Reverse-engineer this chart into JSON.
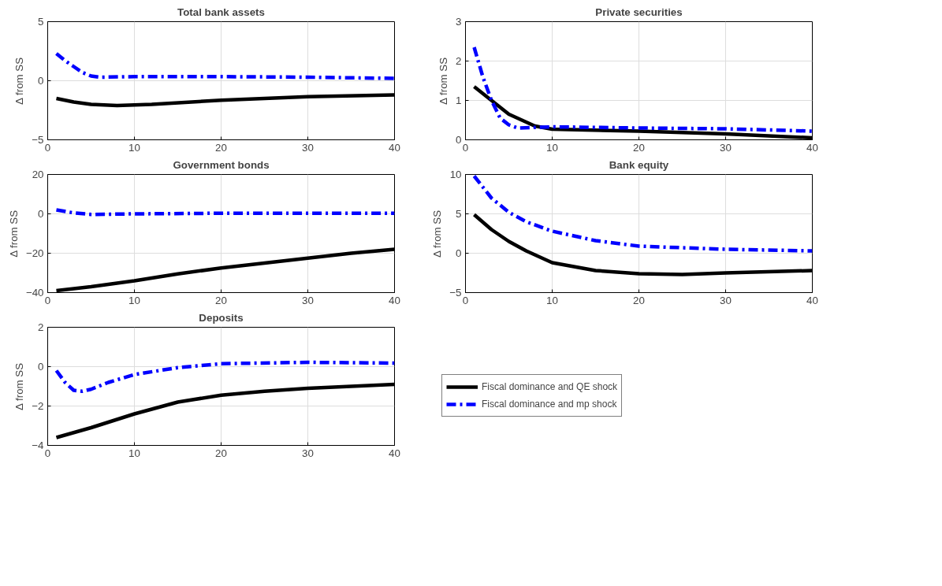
{
  "chart_data": [
    {
      "type": "line",
      "title": "Total bank assets",
      "ylabel": "Δ from SS",
      "xlim": [
        0,
        40
      ],
      "xticks": [
        0,
        10,
        20,
        30,
        40
      ],
      "ylim": [
        -5,
        5
      ],
      "yticks": [
        -5,
        0,
        5
      ],
      "grid": true,
      "series": [
        {
          "color": "#000000",
          "line_style": "solid",
          "x": [
            1,
            3,
            5,
            8,
            12,
            20,
            30,
            40
          ],
          "values": [
            -1.5,
            -1.8,
            -2.0,
            -2.1,
            -2.0,
            -1.65,
            -1.35,
            -1.2
          ]
        },
        {
          "color": "#0000ff",
          "line_style": "dashdot",
          "x": [
            1,
            2,
            3,
            4,
            5,
            6,
            10,
            20,
            30,
            40
          ],
          "values": [
            2.3,
            1.7,
            1.2,
            0.7,
            0.4,
            0.3,
            0.35,
            0.35,
            0.3,
            0.2
          ]
        }
      ]
    },
    {
      "type": "line",
      "title": "Private securities",
      "ylabel": "Δ from SS",
      "xlim": [
        0,
        40
      ],
      "xticks": [
        0,
        10,
        20,
        30,
        40
      ],
      "ylim": [
        0,
        3
      ],
      "yticks": [
        0,
        1,
        2,
        3
      ],
      "grid": true,
      "series": [
        {
          "color": "#000000",
          "line_style": "solid",
          "x": [
            1,
            3,
            5,
            8,
            10,
            20,
            30,
            40
          ],
          "values": [
            1.35,
            1.0,
            0.65,
            0.35,
            0.27,
            0.22,
            0.15,
            0.05
          ]
        },
        {
          "color": "#0000ff",
          "line_style": "dashdot",
          "x": [
            1,
            2,
            3,
            4,
            5,
            6,
            10,
            20,
            30,
            40
          ],
          "values": [
            2.35,
            1.6,
            1.0,
            0.55,
            0.38,
            0.3,
            0.33,
            0.3,
            0.28,
            0.22
          ]
        }
      ]
    },
    {
      "type": "line",
      "title": "Government bonds",
      "ylabel": "Δ from SS",
      "xlim": [
        0,
        40
      ],
      "xticks": [
        0,
        10,
        20,
        30,
        40
      ],
      "ylim": [
        -40,
        20
      ],
      "yticks": [
        -40,
        -20,
        0,
        20
      ],
      "grid": true,
      "series": [
        {
          "color": "#000000",
          "line_style": "solid",
          "x": [
            1,
            5,
            10,
            15,
            20,
            25,
            30,
            35,
            40
          ],
          "values": [
            -39,
            -37,
            -34,
            -30.5,
            -27.5,
            -25,
            -22.5,
            -20,
            -18
          ]
        },
        {
          "color": "#0000ff",
          "line_style": "dashdot",
          "x": [
            1,
            3,
            5,
            7,
            10,
            20,
            30,
            40
          ],
          "values": [
            2,
            0.5,
            -0.3,
            -0.2,
            0,
            0.3,
            0.3,
            0.3
          ]
        }
      ]
    },
    {
      "type": "line",
      "title": "Bank equity",
      "ylabel": "Δ from SS",
      "xlim": [
        0,
        40
      ],
      "xticks": [
        0,
        10,
        20,
        30,
        40
      ],
      "ylim": [
        -5,
        10
      ],
      "yticks": [
        -5,
        0,
        5,
        10
      ],
      "grid": true,
      "series": [
        {
          "color": "#000000",
          "line_style": "solid",
          "x": [
            1,
            3,
            5,
            7,
            10,
            15,
            20,
            25,
            30,
            40
          ],
          "values": [
            4.9,
            3.0,
            1.5,
            0.3,
            -1.2,
            -2.2,
            -2.6,
            -2.7,
            -2.5,
            -2.2
          ]
        },
        {
          "color": "#0000ff",
          "line_style": "dashdot",
          "x": [
            1,
            3,
            5,
            7,
            10,
            15,
            20,
            30,
            40
          ],
          "values": [
            9.8,
            7.0,
            5.2,
            4.0,
            2.8,
            1.6,
            0.9,
            0.5,
            0.3
          ]
        }
      ]
    },
    {
      "type": "line",
      "title": "Deposits",
      "ylabel": "Δ from SS",
      "xlim": [
        0,
        40
      ],
      "xticks": [
        0,
        10,
        20,
        30,
        40
      ],
      "ylim": [
        -4,
        2
      ],
      "yticks": [
        -4,
        -2,
        0,
        2
      ],
      "grid": true,
      "legend": "right",
      "series": [
        {
          "name": "Fiscal dominance and QE shock",
          "color": "#000000",
          "line_style": "solid",
          "x": [
            1,
            5,
            10,
            15,
            20,
            25,
            30,
            40
          ],
          "values": [
            -3.6,
            -3.1,
            -2.4,
            -1.8,
            -1.45,
            -1.25,
            -1.1,
            -0.9
          ]
        },
        {
          "name": "Fiscal dominance and mp shock",
          "color": "#0000ff",
          "line_style": "dashdot",
          "x": [
            1,
            2,
            3,
            4,
            5,
            7,
            10,
            15,
            20,
            30,
            40
          ],
          "values": [
            -0.2,
            -0.8,
            -1.2,
            -1.25,
            -1.15,
            -0.8,
            -0.4,
            -0.05,
            0.15,
            0.22,
            0.18
          ]
        }
      ]
    }
  ]
}
